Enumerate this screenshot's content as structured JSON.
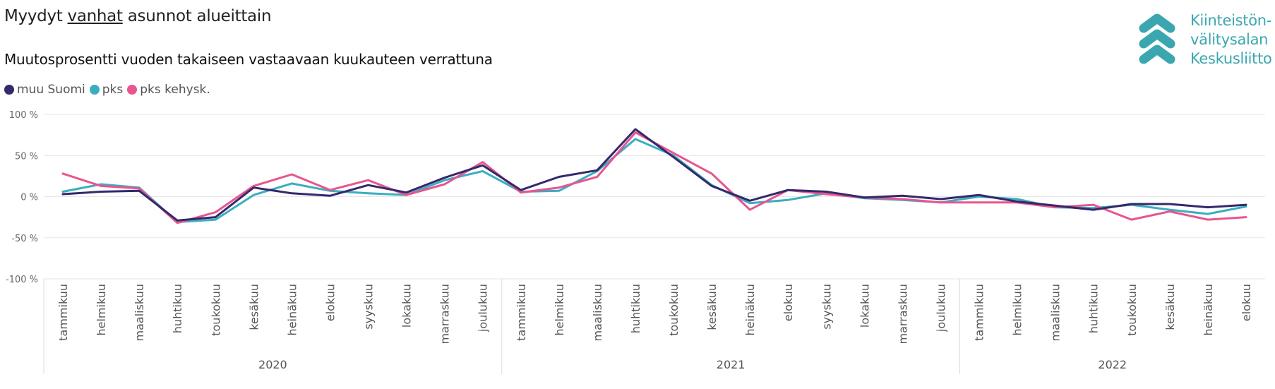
{
  "header": {
    "title_pre": "Myydyt ",
    "title_underlined": "vanhat",
    "title_post": " asunnot alueittain",
    "subtitle": "Muutosprosentti vuoden takaiseen vastaavaan kuukauteen verrattuna"
  },
  "logo": {
    "line1": "Kiinteistön-",
    "line2": "välitysalan",
    "line3": "Keskusliitto",
    "color": "#3aa7b0"
  },
  "legend": [
    {
      "label": "muu Suomi",
      "color": "#35286b"
    },
    {
      "label": "pks",
      "color": "#3aaec0"
    },
    {
      "label": "pks kehysk.",
      "color": "#e8558f"
    }
  ],
  "chart_data": {
    "type": "line",
    "title": "",
    "xlabel": "",
    "ylabel": "",
    "ylim": [
      -100,
      100
    ],
    "yticks": [
      100,
      50,
      0,
      -50,
      -100
    ],
    "ytick_labels": [
      "100 %",
      "50 %",
      "0 %",
      "-50 %",
      "-100 %"
    ],
    "grid": true,
    "legend_position": "top-left",
    "x": [
      "tammikuu",
      "helmikuu",
      "maaliskuu",
      "huhtikuu",
      "toukokuu",
      "kesäkuu",
      "heinäkuu",
      "elokuu",
      "syyskuu",
      "lokakuu",
      "marraskuu",
      "joulukuu",
      "tammikuu",
      "helmikuu",
      "maaliskuu",
      "huhtikuu",
      "toukokuu",
      "kesäkuu",
      "heinäkuu",
      "elokuu",
      "syyskuu",
      "lokakuu",
      "marraskuu",
      "joulukuu",
      "tammikuu",
      "helmikuu",
      "maaliskuu",
      "huhtikuu",
      "toukokuu",
      "kesäkuu",
      "heinäkuu",
      "elokuu"
    ],
    "year_groups": [
      {
        "label": "2020",
        "count": 12
      },
      {
        "label": "2021",
        "count": 12
      },
      {
        "label": "2022",
        "count": 8
      }
    ],
    "series": [
      {
        "name": "muu Suomi",
        "color": "#35286b",
        "values": [
          3,
          6,
          7,
          -29,
          -25,
          11,
          4,
          1,
          14,
          5,
          23,
          38,
          8,
          24,
          32,
          82,
          48,
          13,
          -5,
          8,
          6,
          -1,
          1,
          -3,
          2,
          -6,
          -11,
          -16,
          -9,
          -9,
          -13,
          -10
        ]
      },
      {
        "name": "pks",
        "color": "#3aaec0",
        "values": [
          6,
          15,
          11,
          -31,
          -28,
          2,
          16,
          7,
          4,
          2,
          20,
          31,
          6,
          7,
          31,
          70,
          50,
          14,
          -8,
          -4,
          4,
          -2,
          -4,
          -7,
          0,
          -3,
          -13,
          -14,
          -10,
          -16,
          -21,
          -12
        ]
      },
      {
        "name": "pks kehysk.",
        "color": "#e8558f",
        "values": [
          28,
          13,
          10,
          -32,
          -19,
          13,
          27,
          8,
          20,
          2,
          15,
          42,
          5,
          11,
          24,
          78,
          53,
          28,
          -16,
          8,
          3,
          -1,
          -3,
          -7,
          -7,
          -7,
          -13,
          -10,
          -28,
          -18,
          -28,
          -25
        ]
      }
    ]
  }
}
